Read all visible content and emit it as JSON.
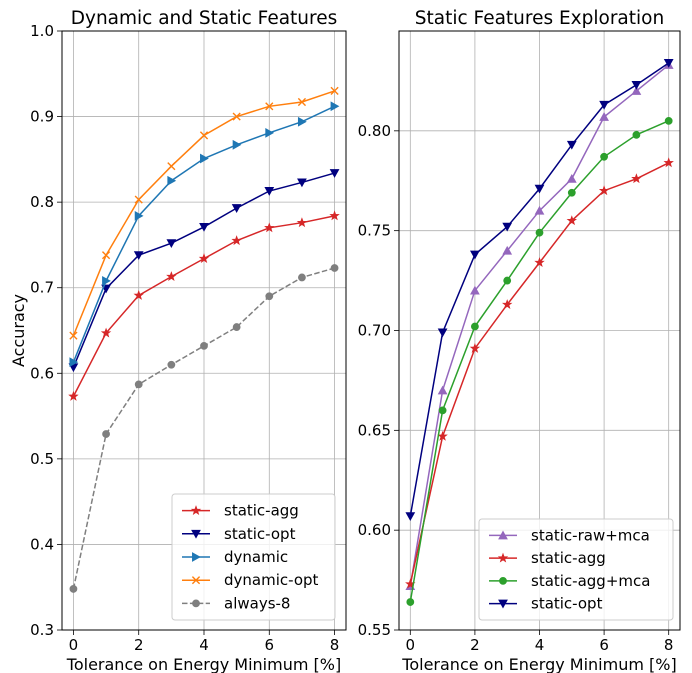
{
  "chart_data": [
    {
      "type": "line",
      "title": "Dynamic and Static Features",
      "xlabel": "Tolerance on Energy Minimum [%]",
      "ylabel": "Accuracy",
      "xlim": [
        -0.35,
        8.35
      ],
      "ylim": [
        0.3,
        1.0
      ],
      "xticks": [
        "0",
        "2",
        "4",
        "6",
        "8"
      ],
      "yticks": [
        "0.3",
        "0.4",
        "0.5",
        "0.6",
        "0.7",
        "0.8",
        "0.9",
        "1.0"
      ],
      "grid": true,
      "legend_position": "bottom-right",
      "x": [
        0,
        1,
        2,
        3,
        4,
        5,
        6,
        7,
        8
      ],
      "series": [
        {
          "name": "static-agg",
          "color": "#d62728",
          "marker": "star",
          "dash": "solid",
          "values": [
            0.573,
            0.647,
            0.691,
            0.713,
            0.734,
            0.755,
            0.77,
            0.776,
            0.784
          ]
        },
        {
          "name": "static-opt",
          "color": "#00007f",
          "marker": "triangle-down",
          "dash": "solid",
          "values": [
            0.607,
            0.699,
            0.738,
            0.752,
            0.771,
            0.793,
            0.813,
            0.823,
            0.834
          ]
        },
        {
          "name": "dynamic",
          "color": "#1f77b4",
          "marker": "triangle-right",
          "dash": "solid",
          "values": [
            0.613,
            0.708,
            0.784,
            0.825,
            0.851,
            0.867,
            0.881,
            0.894,
            0.912
          ]
        },
        {
          "name": "dynamic-opt",
          "color": "#ff7f0e",
          "marker": "x",
          "dash": "solid",
          "values": [
            0.644,
            0.738,
            0.803,
            0.842,
            0.878,
            0.9,
            0.912,
            0.917,
            0.93
          ]
        },
        {
          "name": "always-8",
          "color": "#7f7f7f",
          "marker": "circle",
          "dash": "dashed",
          "values": [
            0.348,
            0.529,
            0.587,
            0.61,
            0.632,
            0.654,
            0.69,
            0.712,
            0.723
          ]
        }
      ]
    },
    {
      "type": "line",
      "title": "Static Features Exploration",
      "xlabel": "Tolerance on Energy Minimum [%]",
      "ylabel": "",
      "xlim": [
        -0.35,
        8.35
      ],
      "ylim": [
        0.55,
        0.85
      ],
      "xticks": [
        "0",
        "2",
        "4",
        "6",
        "8"
      ],
      "yticks": [
        "0.55",
        "0.60",
        "0.65",
        "0.70",
        "0.75",
        "0.80"
      ],
      "grid": true,
      "legend_position": "bottom-right",
      "x": [
        0,
        1,
        2,
        3,
        4,
        5,
        6,
        7,
        8
      ],
      "series": [
        {
          "name": "static-raw+mca",
          "color": "#9467bd",
          "marker": "triangle-up",
          "dash": "solid",
          "values": [
            0.572,
            0.67,
            0.72,
            0.74,
            0.76,
            0.776,
            0.807,
            0.82,
            0.833
          ]
        },
        {
          "name": "static-agg",
          "color": "#d62728",
          "marker": "star",
          "dash": "solid",
          "values": [
            0.573,
            0.647,
            0.691,
            0.713,
            0.734,
            0.755,
            0.77,
            0.776,
            0.784
          ]
        },
        {
          "name": "static-agg+mca",
          "color": "#2ca02c",
          "marker": "circle",
          "dash": "solid",
          "values": [
            0.564,
            0.66,
            0.702,
            0.725,
            0.749,
            0.769,
            0.787,
            0.798,
            0.805
          ]
        },
        {
          "name": "static-opt",
          "color": "#00007f",
          "marker": "triangle-down",
          "dash": "solid",
          "values": [
            0.607,
            0.699,
            0.738,
            0.752,
            0.771,
            0.793,
            0.813,
            0.823,
            0.834
          ]
        }
      ]
    }
  ]
}
